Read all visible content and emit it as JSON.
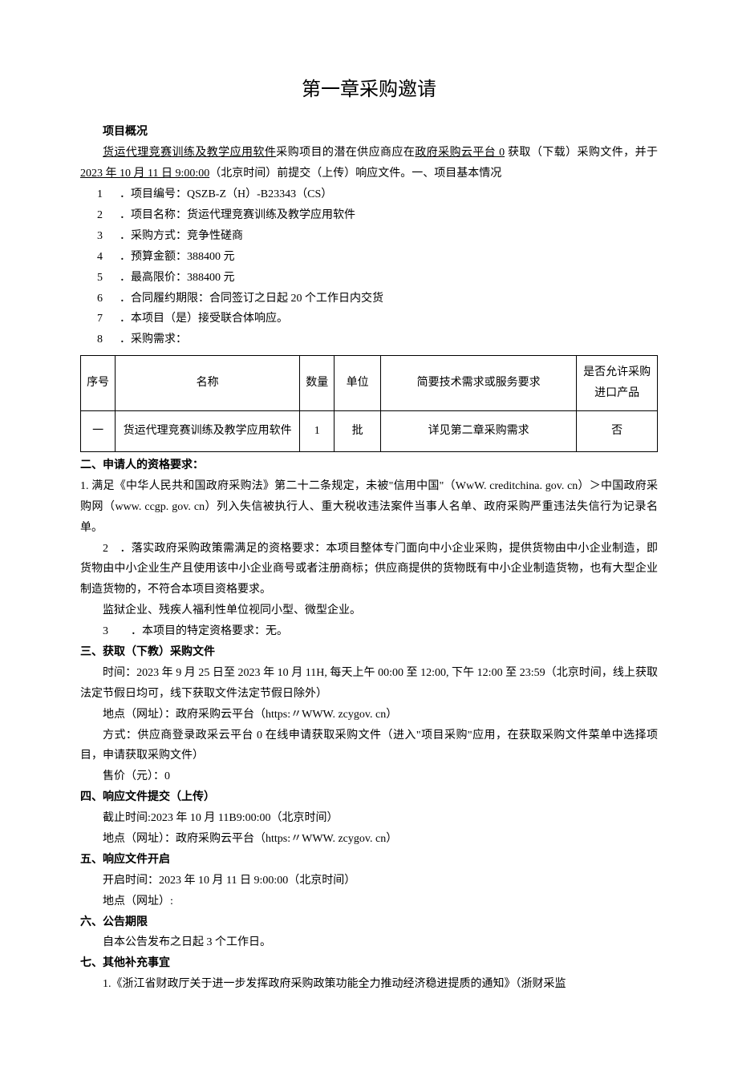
{
  "title": "第一章采购邀请",
  "overview_label": "项目概况",
  "intro": {
    "u1": "货运代理竞赛训练及教学应用软件",
    "p1_mid": "采购项目的潜在供应商应在",
    "u2": "政府采购云平台 0",
    "p1_tail": " 获取（下载）采购文件，并于",
    "u3": " 2023 年 10 月 11 日 9:00:00",
    "p2_tail": "（北京时间）前提交（上传）响应文件。一、项目基本情况"
  },
  "items": [
    {
      "n": "1",
      "t": "．项目编号：QSZB-Z（H）-B23343（CS）"
    },
    {
      "n": "2",
      "t": "．项目名称：货运代理竞赛训练及教学应用软件"
    },
    {
      "n": "3",
      "t": "．采购方式：竞争性磋商"
    },
    {
      "n": "4",
      "t": "．预算金额：388400 元"
    },
    {
      "n": "5",
      "t": "．最高限价：388400 元"
    },
    {
      "n": "6",
      "t": "．合同履约期限：合同签订之日起 20 个工作日内交货"
    },
    {
      "n": "7",
      "t": "．本项目（是）接受联合体响应。"
    },
    {
      "n": "8",
      "t": "．采购需求："
    }
  ],
  "table": {
    "headers": [
      "序号",
      "名称",
      "数量",
      "单位",
      "简要技术需求或服务要求",
      "是否允许采购进口产品"
    ],
    "row": [
      "一",
      "货运代理竞赛训练及教学应用软件",
      "1",
      "批",
      "详见第二章采购需求",
      "否"
    ]
  },
  "sec2": {
    "head": "二、申请人的资格要求：",
    "p1": "1. 满足《中华人民共和国政府采购法》第二十二条规定，未被\"信用中国\"（WwW. creditchina. gov. cn）＞中国政府采购网（www. ccgp. gov. cn）列入失信被执行人、重大税收违法案件当事人名单、政府采购严重违法失信行为记录名单。",
    "p2": "2　．落实政府采购政策需满足的资格要求：本项目整体专门面向中小企业采购，提供货物由中小企业制造，即货物由中小企业生产且使用该中小企业商号或者注册商标；供应商提供的货物既有中小企业制造货物，也有大型企业制造货物的，不符合本项目资格要求。",
    "p3": "监狱企业、残疾人福利性单位视同小型、微型企业。",
    "p4": "3　　．本项目的特定资格要求：无。"
  },
  "sec3": {
    "head": "三、获取（下教）采购文件",
    "p1": "时间：2023 年 9 月 25 日至 2023 年 10 月 11H, 每天上午 00:00 至 12:00, 下午 12:00 至 23:59（北京时间，线上获取法定节假日均可，线下获取文件法定节假日除外）",
    "p2": "地点（网址）：政府采购云平台（https:〃WWW. zcygov. cn）",
    "p3": "方式：供应商登录政采云平台 0 在线申请获取采购文件（进入\"项目采购\"应用，在获取采购文件菜单中选择项目，申请获取采购文件）",
    "p4": "售价（元）：0"
  },
  "sec4": {
    "head": "四、响应文件提交（上传）",
    "p1": "截止时间:2023 年 10 月 11B9:00:00（北京时间）",
    "p2": "地点（网址）：政府采购云平台（https:〃WWW. zcygov. cn）"
  },
  "sec5": {
    "head": "五、响应文件开启",
    "p1": "开启时间：2023 年 10 月 11 日 9:00:00（北京时间）",
    "p2": "地点（网址）:"
  },
  "sec6": {
    "head": "六、公告期限",
    "p1": "自本公告发布之日起 3 个工作日。"
  },
  "sec7": {
    "head": "七、其他补充事宜",
    "p1": "1.《浙江省财政厅关于进一步发挥政府采购政策功能全力推动经济稳进提质的通知》（浙财采监"
  }
}
